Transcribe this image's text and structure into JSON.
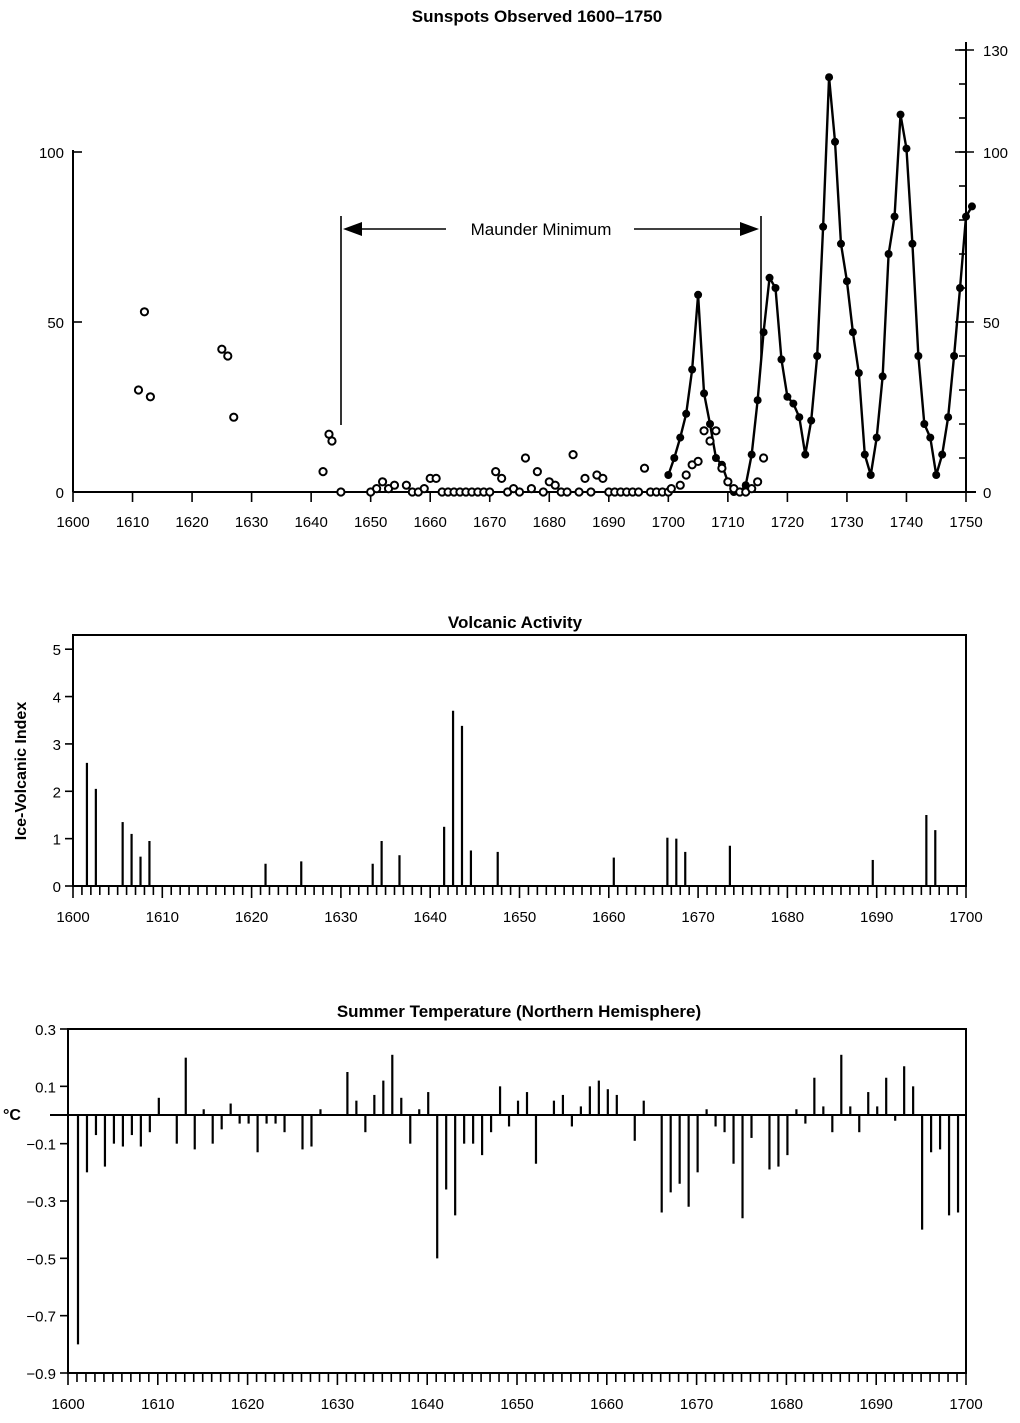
{
  "chart_data": [
    {
      "type": "scatter",
      "title": "Sunspots Observed 1600–1750",
      "xlim": [
        1600,
        1750
      ],
      "ylim": [
        0,
        130
      ],
      "x_ticks": [
        1600,
        1610,
        1620,
        1630,
        1640,
        1650,
        1660,
        1670,
        1680,
        1690,
        1700,
        1710,
        1720,
        1730,
        1740,
        1750
      ],
      "y_ticks_left": [
        0,
        50,
        100
      ],
      "y_ticks_right": [
        0,
        50,
        100,
        130
      ],
      "annotation": {
        "label": "Maunder Minimum",
        "from": 1645,
        "to": 1715
      },
      "series": [
        {
          "marker": "open-circle",
          "points": [
            [
              1611,
              30
            ],
            [
              1612,
              53
            ],
            [
              1613,
              28
            ],
            [
              1625,
              42
            ],
            [
              1626,
              40
            ],
            [
              1627,
              22
            ],
            [
              1642,
              6
            ],
            [
              1643,
              17
            ],
            [
              1643.5,
              15
            ],
            [
              1645,
              0
            ],
            [
              1650,
              0
            ],
            [
              1651,
              1
            ],
            [
              1652,
              3
            ],
            [
              1653,
              1
            ],
            [
              1654,
              2
            ],
            [
              1656,
              2
            ],
            [
              1657,
              0
            ],
            [
              1658,
              0
            ],
            [
              1659,
              1
            ],
            [
              1660,
              4
            ],
            [
              1661,
              4
            ],
            [
              1662,
              0
            ],
            [
              1663,
              0
            ],
            [
              1664,
              0
            ],
            [
              1665,
              0
            ],
            [
              1666,
              0
            ],
            [
              1667,
              0
            ],
            [
              1668,
              0
            ],
            [
              1669,
              0
            ],
            [
              1670,
              0
            ],
            [
              1671,
              6
            ],
            [
              1672,
              4
            ],
            [
              1673,
              0
            ],
            [
              1674,
              1
            ],
            [
              1675,
              0
            ],
            [
              1676,
              10
            ],
            [
              1677,
              1
            ],
            [
              1678,
              6
            ],
            [
              1679,
              0
            ],
            [
              1680,
              3
            ],
            [
              1681,
              2
            ],
            [
              1682,
              0
            ],
            [
              1683,
              0
            ],
            [
              1684,
              11
            ],
            [
              1685,
              0
            ],
            [
              1686,
              4
            ],
            [
              1687,
              0
            ],
            [
              1688,
              5
            ],
            [
              1689,
              4
            ],
            [
              1690,
              0
            ],
            [
              1691,
              0
            ],
            [
              1692,
              0
            ],
            [
              1693,
              0
            ],
            [
              1694,
              0
            ],
            [
              1695,
              0
            ],
            [
              1696,
              7
            ],
            [
              1697,
              0
            ],
            [
              1698,
              0
            ],
            [
              1699,
              0
            ],
            [
              1700,
              0
            ],
            [
              1700.5,
              1
            ],
            [
              1702,
              2
            ],
            [
              1703,
              5
            ],
            [
              1704,
              8
            ],
            [
              1705,
              9
            ],
            [
              1706,
              18
            ],
            [
              1707,
              15
            ],
            [
              1708,
              18
            ],
            [
              1709,
              7
            ],
            [
              1710,
              3
            ],
            [
              1711,
              1
            ],
            [
              1712,
              0
            ],
            [
              1713,
              0
            ],
            [
              1714,
              1
            ],
            [
              1715,
              3
            ],
            [
              1716,
              10
            ]
          ]
        },
        {
          "marker": "filled-dot-line",
          "points": [
            [
              1700,
              5
            ],
            [
              1701,
              10
            ],
            [
              1702,
              16
            ],
            [
              1703,
              23
            ],
            [
              1704,
              36
            ],
            [
              1705,
              58
            ],
            [
              1706,
              29
            ],
            [
              1707,
              20
            ],
            [
              1708,
              10
            ],
            [
              1709,
              8
            ],
            [
              1710,
              3
            ],
            [
              1711,
              0
            ],
            [
              1712,
              0
            ],
            [
              1713,
              2
            ],
            [
              1714,
              11
            ],
            [
              1715,
              27
            ],
            [
              1716,
              47
            ],
            [
              1717,
              63
            ],
            [
              1718,
              60
            ],
            [
              1719,
              39
            ],
            [
              1720,
              28
            ],
            [
              1721,
              26
            ],
            [
              1722,
              22
            ],
            [
              1723,
              11
            ],
            [
              1724,
              21
            ],
            [
              1725,
              40
            ],
            [
              1726,
              78
            ],
            [
              1727,
              122
            ],
            [
              1728,
              103
            ],
            [
              1729,
              73
            ],
            [
              1730,
              62
            ],
            [
              1731,
              47
            ],
            [
              1732,
              35
            ],
            [
              1733,
              11
            ],
            [
              1734,
              5
            ],
            [
              1735,
              16
            ],
            [
              1736,
              34
            ],
            [
              1737,
              70
            ],
            [
              1738,
              81
            ],
            [
              1739,
              111
            ],
            [
              1740,
              101
            ],
            [
              1741,
              73
            ],
            [
              1742,
              40
            ],
            [
              1743,
              20
            ],
            [
              1744,
              16
            ],
            [
              1745,
              5
            ],
            [
              1746,
              11
            ],
            [
              1747,
              22
            ],
            [
              1748,
              40
            ],
            [
              1749,
              60
            ],
            [
              1750,
              81
            ],
            [
              1751,
              84
            ]
          ]
        }
      ]
    },
    {
      "type": "bar",
      "title": "Volcanic Activity",
      "ylabel": "Ice-Volcanic Index",
      "xlim": [
        1600,
        1700
      ],
      "ylim": [
        0,
        5.3
      ],
      "x_ticks": [
        1600,
        1610,
        1620,
        1630,
        1640,
        1650,
        1660,
        1670,
        1680,
        1690,
        1700
      ],
      "y_ticks": [
        0,
        1,
        2,
        3,
        4,
        5
      ],
      "x": [
        1601,
        1602,
        1605,
        1606,
        1607,
        1608,
        1621,
        1625,
        1633,
        1634,
        1636,
        1641,
        1642,
        1643,
        1644,
        1647,
        1660,
        1666,
        1667,
        1668,
        1673,
        1689,
        1695,
        1696
      ],
      "values": [
        2.6,
        2.05,
        1.35,
        1.1,
        0.62,
        0.95,
        0.47,
        0.52,
        0.47,
        0.95,
        0.65,
        1.25,
        3.7,
        3.38,
        0.75,
        0.72,
        0.6,
        1.02,
        1.0,
        0.72,
        0.85,
        0.55,
        1.5,
        1.18
      ]
    },
    {
      "type": "bar",
      "title": "Summer Temperature (Northern Hemisphere)",
      "ylabel": "°C",
      "xlim": [
        1600,
        1700
      ],
      "ylim": [
        -0.9,
        0.3
      ],
      "x_ticks": [
        1600,
        1610,
        1620,
        1630,
        1640,
        1650,
        1660,
        1670,
        1680,
        1690,
        1700
      ],
      "y_ticks": [
        "0.3",
        "0.1",
        "-0.1",
        "-0.3",
        "-0.5",
        "-0.7",
        "-0.9"
      ],
      "x": [
        1600,
        1601,
        1602,
        1603,
        1604,
        1605,
        1606,
        1607,
        1608,
        1609,
        1610,
        1611,
        1612,
        1613,
        1614,
        1615,
        1616,
        1617,
        1618,
        1619,
        1620,
        1621,
        1622,
        1623,
        1624,
        1625,
        1626,
        1627,
        1628,
        1629,
        1630,
        1631,
        1632,
        1633,
        1634,
        1635,
        1636,
        1637,
        1638,
        1639,
        1640,
        1641,
        1642,
        1643,
        1644,
        1645,
        1646,
        1647,
        1648,
        1649,
        1650,
        1651,
        1652,
        1653,
        1654,
        1655,
        1656,
        1657,
        1658,
        1659,
        1660,
        1661,
        1662,
        1663,
        1664,
        1665,
        1666,
        1667,
        1668,
        1669,
        1670,
        1671,
        1672,
        1673,
        1674,
        1675,
        1676,
        1677,
        1678,
        1679,
        1680,
        1681,
        1682,
        1683,
        1684,
        1685,
        1686,
        1687,
        1688,
        1689,
        1690,
        1691,
        1692,
        1693,
        1694,
        1695,
        1696,
        1697,
        1698,
        1699
      ],
      "values": [
        -0.8,
        -0.2,
        -0.07,
        -0.18,
        -0.1,
        -0.11,
        -0.07,
        -0.11,
        -0.06,
        0.06,
        0.0,
        -0.1,
        0.2,
        -0.12,
        0.02,
        -0.1,
        -0.05,
        0.04,
        -0.03,
        -0.03,
        -0.13,
        -0.03,
        -0.03,
        -0.06,
        0.0,
        -0.12,
        -0.11,
        0.02,
        0.0,
        0.0,
        0.15,
        0.05,
        -0.06,
        0.07,
        0.12,
        0.21,
        0.06,
        -0.1,
        0.02,
        0.08,
        -0.5,
        -0.26,
        -0.35,
        -0.1,
        -0.1,
        -0.14,
        -0.06,
        0.1,
        -0.04,
        0.05,
        0.08,
        -0.17,
        0.0,
        0.05,
        0.07,
        -0.04,
        0.03,
        0.1,
        0.12,
        0.09,
        0.07,
        0.0,
        -0.09,
        0.05,
        0.0,
        -0.34,
        -0.27,
        -0.24,
        -0.32,
        -0.2,
        0.02,
        -0.04,
        -0.06,
        -0.17,
        -0.36,
        -0.08,
        0.0,
        -0.19,
        -0.18,
        -0.14,
        0.02,
        -0.03,
        0.13,
        0.03,
        -0.06,
        0.21,
        0.03,
        -0.06,
        0.08,
        0.03,
        0.13,
        -0.02,
        0.17,
        0.1,
        -0.4,
        -0.13,
        -0.12,
        -0.35,
        -0.34,
        0.0
      ]
    }
  ]
}
